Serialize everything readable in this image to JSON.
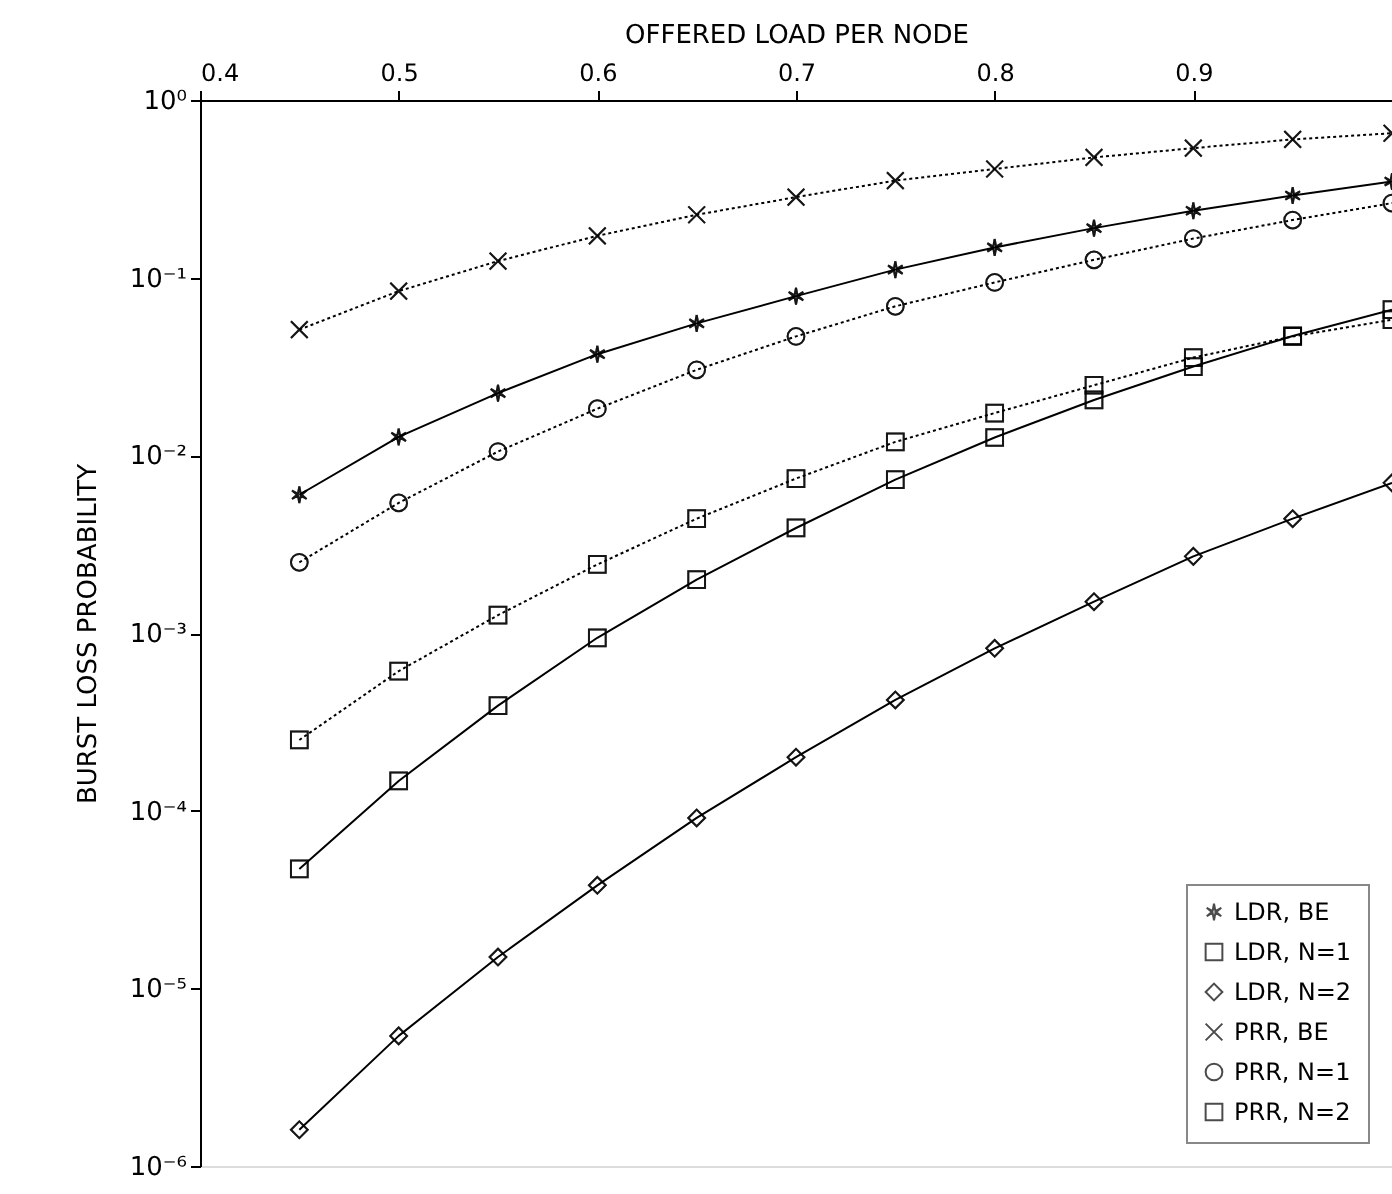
{
  "chart_data": {
    "type": "line",
    "xlabel": "OFFERED LOAD PER NODE",
    "ylabel": "BURST LOSS PROBABILITY",
    "x": [
      0.45,
      0.5,
      0.55,
      0.6,
      0.65,
      0.7,
      0.75,
      0.8,
      0.85,
      0.9,
      0.95,
      1.0
    ],
    "series": [
      {
        "name": "LDR, BE",
        "color": "#000000",
        "marker": "star",
        "line_style": "solid",
        "values": [
          0.006,
          0.0127,
          0.0224,
          0.0371,
          0.0553,
          0.0787,
          0.111,
          0.148,
          0.19,
          0.238,
          0.29,
          0.348
        ]
      },
      {
        "name": "LDR, N=1",
        "color": "#000000",
        "marker": "square",
        "line_style": "solid",
        "values": [
          4.7e-05,
          0.000147,
          0.00039,
          0.00094,
          0.002,
          0.0039,
          0.0073,
          0.0126,
          0.0205,
          0.0316,
          0.047,
          0.066
        ]
      },
      {
        "name": "LDR, N=2",
        "color": "#000000",
        "marker": "diamond",
        "line_style": "solid",
        "values": [
          1.6e-06,
          5.4e-06,
          1.5e-05,
          3.8e-05,
          9.1e-05,
          0.0002,
          0.00042,
          0.00082,
          0.0015,
          0.0027,
          0.0044,
          0.007
        ]
      },
      {
        "name": "PRR, BE",
        "color": "#000000",
        "marker": "cross",
        "line_style": "dotted",
        "values": [
          0.051,
          0.084,
          0.124,
          0.172,
          0.226,
          0.284,
          0.352,
          0.409,
          0.475,
          0.536,
          0.6,
          0.65
        ]
      },
      {
        "name": "PRR, N=1",
        "color": "#000000",
        "marker": "circle",
        "line_style": "dotted",
        "values": [
          0.0025,
          0.0054,
          0.0105,
          0.0183,
          0.0303,
          0.0467,
          0.069,
          0.094,
          0.126,
          0.166,
          0.211,
          0.263
        ]
      },
      {
        "name": "PRR, N=2",
        "color": "#000000",
        "marker": "square",
        "line_style": "dotted",
        "values": [
          0.00025,
          0.00061,
          0.00126,
          0.00243,
          0.0044,
          0.0074,
          0.0119,
          0.0173,
          0.0248,
          0.0355,
          0.0467,
          0.058
        ]
      }
    ],
    "xlim": [
      0.4,
      1.0
    ],
    "xticks": [
      0.4,
      0.5,
      0.6,
      0.7,
      0.8,
      0.9
    ],
    "log": true,
    "ylim": [
      1e-06,
      1
    ],
    "yticks": [
      {
        "value": 1e-06,
        "label": "10⁻⁶"
      },
      {
        "value": 1e-05,
        "label": "10⁻⁵"
      },
      {
        "value": 0.0001,
        "label": "10⁻⁴"
      },
      {
        "value": 0.001,
        "label": "10⁻³"
      },
      {
        "value": 0.01,
        "label": "10⁻²"
      },
      {
        "value": 0.1,
        "label": "10⁻¹"
      },
      {
        "value": 1,
        "label": "10⁰"
      }
    ],
    "grid": false,
    "legend": "bottom right"
  }
}
